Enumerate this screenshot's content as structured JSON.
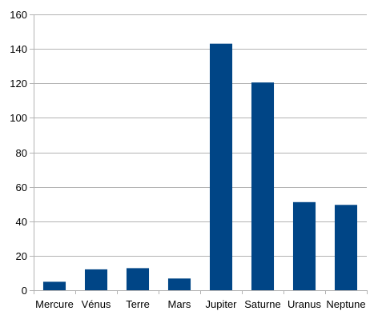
{
  "chart_data": {
    "type": "bar",
    "categories": [
      "Mercure",
      "Vénus",
      "Terre",
      "Mars",
      "Jupiter",
      "Saturne",
      "Uranus",
      "Neptune"
    ],
    "values": [
      4.9,
      12.1,
      12.8,
      6.8,
      143,
      120.5,
      51.1,
      49.5
    ],
    "ylim": [
      0,
      160
    ],
    "yticks": [
      0,
      20,
      40,
      60,
      80,
      100,
      120,
      140,
      160
    ],
    "grid": true,
    "legend": "none",
    "title": "",
    "xlabel": "",
    "ylabel": "",
    "bar_color": "#004586",
    "grid_color": "#b3b3b3"
  }
}
